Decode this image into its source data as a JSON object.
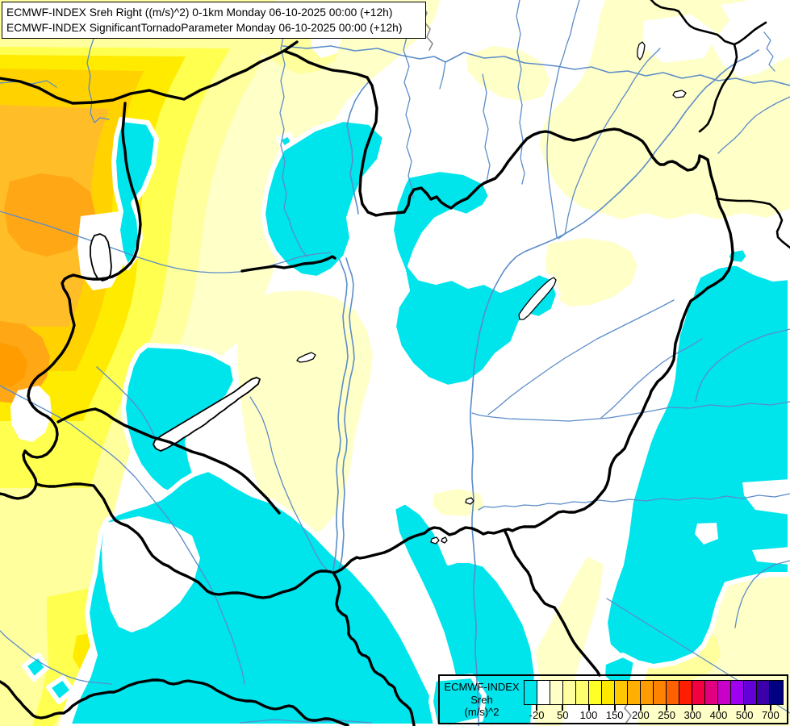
{
  "title_box": {
    "line1": "ECMWF-INDEX Sreh Right ((m/s)^2) 0-1km Monday 06-10-2025 00:00 (+12h)",
    "line2": "ECMWF-INDEX SignificantTornadoParameter Monday 06-10-2025 00:00 (+12h)"
  },
  "legend": {
    "title_lines": [
      "ECMWF-INDEX",
      "Sreh",
      "(m/s)^2"
    ],
    "scale_colors": [
      "#00E4EC",
      "#FFFFFF",
      "#FFFFC8",
      "#FFFFA0",
      "#FFFF6E",
      "#FFFF28",
      "#FFE800",
      "#FFC800",
      "#FFB000",
      "#FF9C00",
      "#FF8200",
      "#FF6000",
      "#FF1E00",
      "#F20040",
      "#E00080",
      "#C800C8",
      "#A000F0",
      "#6400D8",
      "#3C00AA",
      "#000082"
    ],
    "tick_labels": [
      "-20",
      "50",
      "100",
      "150",
      "200",
      "250",
      "300",
      "400",
      "500",
      "700"
    ],
    "tick_positions": [
      1,
      3,
      5,
      7,
      9,
      11,
      13,
      15,
      17,
      19
    ]
  },
  "colors": {
    "background": "#FFFFFF",
    "cyan_negative": "#00E4EC",
    "yellow_pale": "#FFFFC8",
    "yellow_light": "#FFFF9E",
    "yellow_mid": "#FFFF50",
    "yellow_strong": "#FFEB00",
    "gold": "#FFD200",
    "amber": "#FFBE28",
    "orange": "#FFA714",
    "orange_deep": "#FF9C00",
    "river_blue": "#5B8CC8",
    "border_black": "#000000",
    "gray_line": "#8C8C8C"
  }
}
